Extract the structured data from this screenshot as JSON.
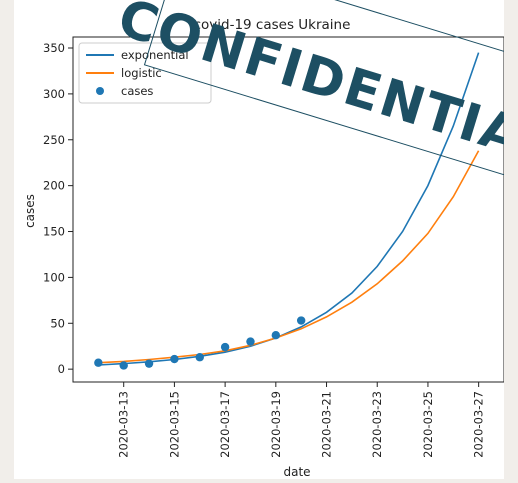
{
  "chart_data": {
    "type": "line",
    "title": "covid-19 cases Ukraine",
    "xlabel": "date",
    "ylabel": "cases",
    "x_ticks": [
      "2020-03-13",
      "2020-03-15",
      "2020-03-17",
      "2020-03-19",
      "2020-03-21",
      "2020-03-23",
      "2020-03-25",
      "2020-03-27"
    ],
    "y_ticks": [
      0,
      50,
      100,
      150,
      200,
      250,
      300,
      350
    ],
    "ylim": [
      -14,
      362
    ],
    "xlim": [
      "2020-03-11",
      "2020-03-28"
    ],
    "grid": false,
    "legend_position": "top-left",
    "series": [
      {
        "name": "exponential",
        "kind": "line",
        "color": "#1f77b4",
        "x": [
          "2020-03-12",
          "2020-03-13",
          "2020-03-14",
          "2020-03-15",
          "2020-03-16",
          "2020-03-17",
          "2020-03-18",
          "2020-03-19",
          "2020-03-20",
          "2020-03-21",
          "2020-03-22",
          "2020-03-23",
          "2020-03-24",
          "2020-03-25",
          "2020-03-26",
          "2020-03-27"
        ],
        "y": [
          4.5,
          6,
          8,
          10.5,
          14,
          18.5,
          25,
          34,
          46,
          62,
          83,
          112,
          150,
          200,
          265,
          345
        ]
      },
      {
        "name": "logistic",
        "kind": "line",
        "color": "#ff7f0e",
        "x": [
          "2020-03-12",
          "2020-03-13",
          "2020-03-14",
          "2020-03-15",
          "2020-03-16",
          "2020-03-17",
          "2020-03-18",
          "2020-03-19",
          "2020-03-20",
          "2020-03-21",
          "2020-03-22",
          "2020-03-23",
          "2020-03-24",
          "2020-03-25",
          "2020-03-26",
          "2020-03-27"
        ],
        "y": [
          7,
          8.5,
          10.5,
          13,
          16,
          20,
          26,
          34,
          44,
          57,
          73,
          93,
          118,
          148,
          188,
          238
        ]
      },
      {
        "name": "cases",
        "kind": "scatter",
        "color": "#1f77b4",
        "x": [
          "2020-03-12",
          "2020-03-13",
          "2020-03-14",
          "2020-03-15",
          "2020-03-16",
          "2020-03-17",
          "2020-03-18",
          "2020-03-19",
          "2020-03-20"
        ],
        "y": [
          7,
          4,
          6,
          11,
          13,
          24,
          30,
          37,
          53
        ]
      }
    ]
  },
  "stamp": {
    "text": "CONFIDENTIAL",
    "color": "#1d4f63"
  }
}
